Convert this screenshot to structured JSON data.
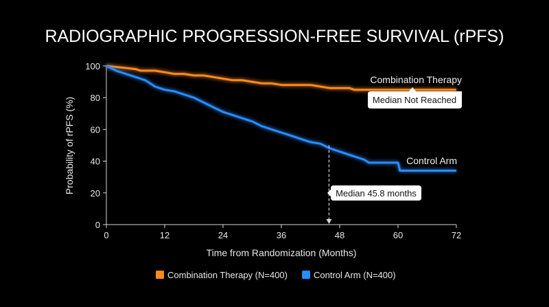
{
  "chart_data": {
    "type": "line",
    "title": "RADIOGRAPHIC PROGRESSION-FREE SURVIVAL (rPFS)",
    "xlabel": "Time from Randomization (Months)",
    "ylabel": "Probability of rPFS (%)",
    "xlim": [
      0,
      72
    ],
    "ylim": [
      0,
      100
    ],
    "xticks": [
      0,
      12,
      24,
      36,
      48,
      60,
      72
    ],
    "yticks": [
      0,
      20,
      40,
      60,
      80,
      100
    ],
    "grid": false,
    "legend_position": "bottom",
    "series": [
      {
        "name": "Combination Therapy (N=400)",
        "label": "Combination Therapy",
        "color": "#ff8a1f",
        "x": [
          0,
          3,
          6,
          7,
          8,
          10,
          12,
          14,
          16,
          18,
          20,
          22,
          24,
          26,
          28,
          30,
          32,
          34,
          36,
          38,
          40,
          42,
          44,
          46,
          48,
          50,
          51,
          52,
          54,
          56,
          60,
          64,
          72
        ],
        "y": [
          100,
          99,
          98,
          97,
          97,
          97,
          96,
          95,
          95,
          94,
          94,
          93,
          92,
          91,
          91,
          90,
          89,
          89,
          88,
          88,
          88,
          88,
          87,
          86,
          86,
          86,
          85,
          85,
          85,
          85,
          85,
          85,
          85
        ]
      },
      {
        "name": "Control Arm (N=400)",
        "label": "Control Arm",
        "color": "#2b8cff",
        "x": [
          0,
          2,
          4,
          6,
          7,
          8,
          9,
          10,
          12,
          14,
          16,
          18,
          20,
          22,
          24,
          26,
          28,
          30,
          32,
          34,
          36,
          38,
          40,
          42,
          44,
          46,
          48,
          50,
          52,
          53,
          54,
          57,
          60,
          60.4,
          64,
          72
        ],
        "y": [
          100,
          97,
          95,
          93,
          92,
          91,
          89,
          87,
          85,
          84,
          82,
          80,
          77,
          74,
          71,
          69,
          67,
          65,
          62,
          60,
          58,
          56,
          54,
          52,
          51,
          48,
          46,
          44,
          42,
          41,
          39,
          39,
          39,
          34,
          34,
          34
        ]
      }
    ],
    "annotations": [
      {
        "text": "Median Not Reached",
        "series": 0
      },
      {
        "text": "Median 45.8 months",
        "series": 1,
        "x": 45.8,
        "y": 50
      }
    ]
  }
}
